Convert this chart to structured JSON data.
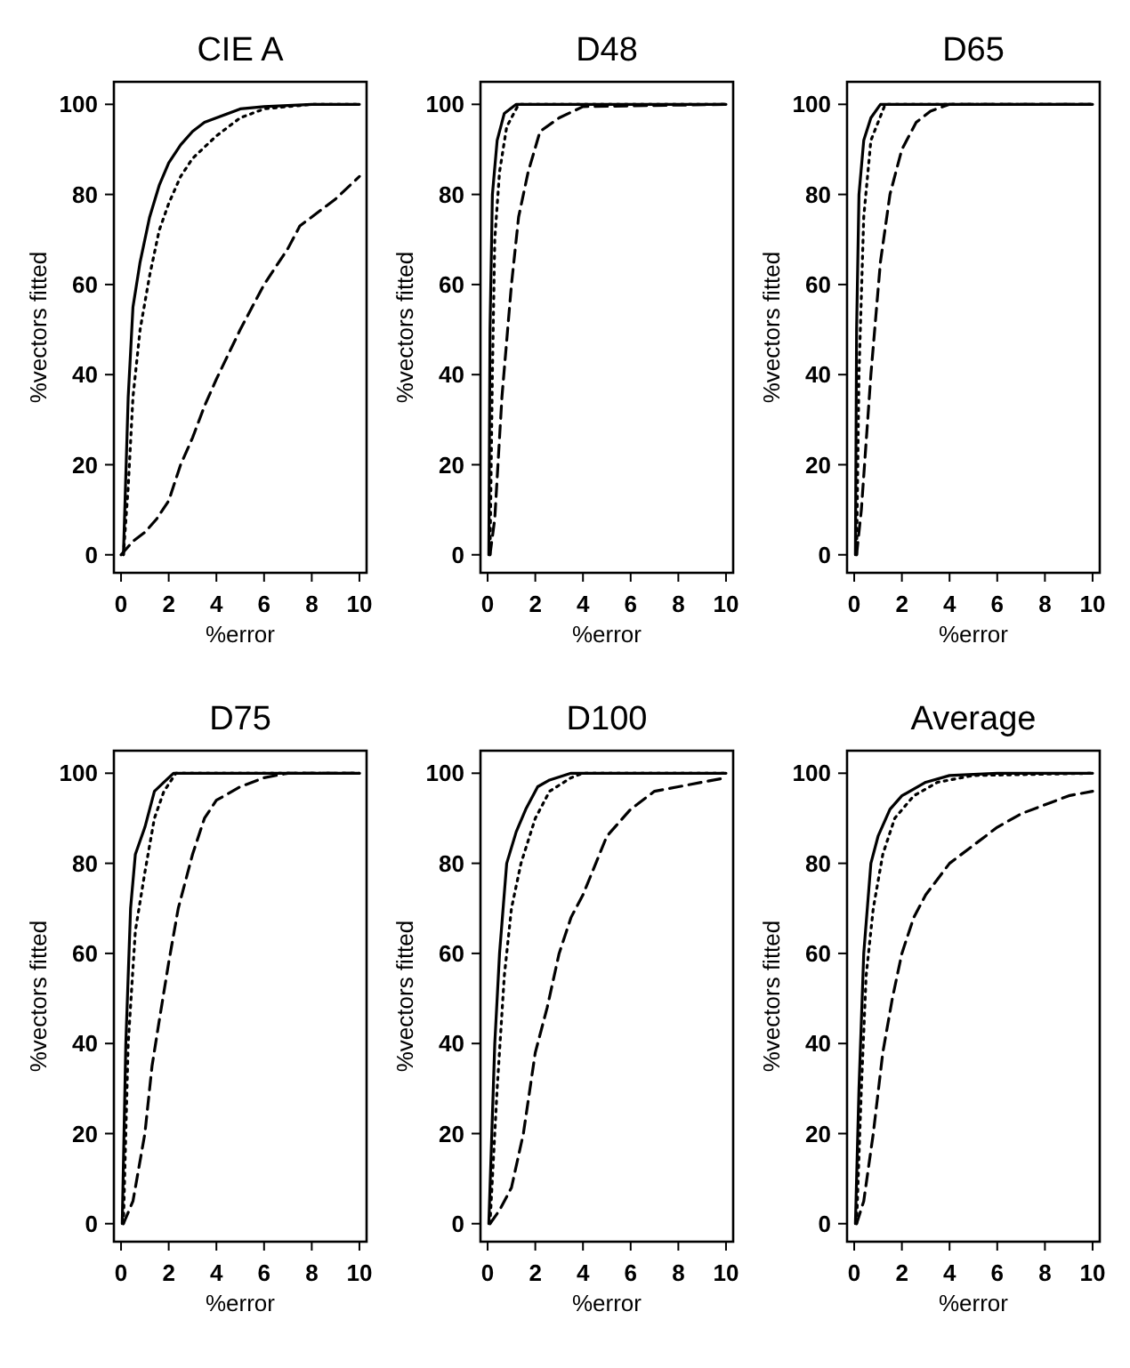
{
  "chart_data": [
    {
      "type": "line",
      "title": "CIE A",
      "xlabel": "%error",
      "ylabel": "%vectors fitted",
      "xlim": [
        -0.3,
        10.3
      ],
      "ylim": [
        -4,
        105
      ],
      "xticks": [
        0,
        2,
        4,
        6,
        8,
        10
      ],
      "yticks": [
        0,
        20,
        40,
        60,
        80,
        100
      ],
      "grid": false,
      "legend": false,
      "marker": "none",
      "series": [
        {
          "color": "#000000",
          "line_style": "solid",
          "x": [
            0.1,
            0.3,
            0.5,
            0.8,
            1.2,
            1.6,
            2,
            2.5,
            3,
            3.5,
            4,
            5,
            6,
            8,
            10
          ],
          "values": [
            0,
            35,
            55,
            65,
            75,
            82,
            87,
            91,
            94,
            96,
            97,
            99,
            99.5,
            100,
            100
          ]
        },
        {
          "color": "#000000",
          "line_style": "dotted",
          "x": [
            0.1,
            0.3,
            0.5,
            0.8,
            1.2,
            1.6,
            2,
            2.5,
            3,
            4,
            5,
            6,
            8,
            10
          ],
          "values": [
            0,
            15,
            35,
            50,
            62,
            72,
            78,
            84,
            88,
            93,
            97,
            99,
            100,
            100
          ]
        },
        {
          "color": "#000000",
          "line_style": "dashed",
          "x": [
            0,
            0.5,
            1,
            1.5,
            2,
            2.5,
            3,
            3.5,
            4,
            5,
            6,
            7,
            7.5,
            8,
            9,
            10
          ],
          "values": [
            0,
            3,
            5,
            8,
            12,
            20,
            26,
            33,
            39,
            50,
            60,
            68,
            73,
            75,
            79,
            84
          ]
        }
      ]
    },
    {
      "type": "line",
      "title": "D48",
      "xlabel": "%error",
      "ylabel": "%vectors fitted",
      "xlim": [
        -0.3,
        10.3
      ],
      "ylim": [
        -4,
        105
      ],
      "xticks": [
        0,
        2,
        4,
        6,
        8,
        10
      ],
      "yticks": [
        0,
        20,
        40,
        60,
        80,
        100
      ],
      "grid": false,
      "legend": false,
      "marker": "none",
      "series": [
        {
          "color": "#000000",
          "line_style": "solid",
          "x": [
            0.05,
            0.1,
            0.2,
            0.4,
            0.7,
            1.2,
            10
          ],
          "values": [
            0,
            50,
            80,
            92,
            98,
            100,
            100
          ]
        },
        {
          "color": "#000000",
          "line_style": "dotted",
          "x": [
            0.1,
            0.2,
            0.3,
            0.5,
            0.8,
            1.3,
            10
          ],
          "values": [
            0,
            40,
            70,
            85,
            95,
            100,
            100
          ]
        },
        {
          "color": "#000000",
          "line_style": "dashed",
          "x": [
            0.1,
            0.3,
            0.6,
            1,
            1.3,
            1.7,
            2.2,
            3,
            4,
            10
          ],
          "values": [
            0,
            8,
            35,
            60,
            75,
            85,
            94,
            97,
            99.5,
            100
          ]
        }
      ]
    },
    {
      "type": "line",
      "title": "D65",
      "xlabel": "%error",
      "ylabel": "%vectors fitted",
      "xlim": [
        -0.3,
        10.3
      ],
      "ylim": [
        -4,
        105
      ],
      "xticks": [
        0,
        2,
        4,
        6,
        8,
        10
      ],
      "yticks": [
        0,
        20,
        40,
        60,
        80,
        100
      ],
      "grid": false,
      "legend": false,
      "marker": "none",
      "series": [
        {
          "color": "#000000",
          "line_style": "solid",
          "x": [
            0.05,
            0.1,
            0.2,
            0.4,
            0.7,
            1.1,
            10
          ],
          "values": [
            0,
            50,
            80,
            92,
            97,
            100,
            100
          ]
        },
        {
          "color": "#000000",
          "line_style": "dotted",
          "x": [
            0.1,
            0.2,
            0.4,
            0.7,
            1.3,
            10
          ],
          "values": [
            0,
            40,
            75,
            92,
            100,
            100
          ]
        },
        {
          "color": "#000000",
          "line_style": "dashed",
          "x": [
            0.1,
            0.3,
            0.7,
            1.1,
            1.5,
            2,
            2.6,
            3.2,
            4,
            10
          ],
          "values": [
            0,
            10,
            40,
            65,
            80,
            90,
            96,
            98.5,
            100,
            100
          ]
        }
      ]
    },
    {
      "type": "line",
      "title": "D75",
      "xlabel": "%error",
      "ylabel": "%vectors fitted",
      "xlim": [
        -0.3,
        10.3
      ],
      "ylim": [
        -4,
        105
      ],
      "xticks": [
        0,
        2,
        4,
        6,
        8,
        10
      ],
      "yticks": [
        0,
        20,
        40,
        60,
        80,
        100
      ],
      "grid": false,
      "legend": false,
      "marker": "none",
      "series": [
        {
          "color": "#000000",
          "line_style": "solid",
          "x": [
            0.05,
            0.2,
            0.4,
            0.6,
            1,
            1.4,
            1.8,
            2.2,
            10
          ],
          "values": [
            0,
            40,
            70,
            82,
            88,
            96,
            98,
            100,
            100
          ]
        },
        {
          "color": "#000000",
          "line_style": "dotted",
          "x": [
            0.1,
            0.3,
            0.6,
            1,
            1.4,
            1.8,
            2.3,
            10
          ],
          "values": [
            0,
            40,
            65,
            78,
            90,
            96,
            100,
            100
          ]
        },
        {
          "color": "#000000",
          "line_style": "dashed",
          "x": [
            0.1,
            0.5,
            1,
            1.3,
            1.6,
            2,
            2.4,
            3,
            3.5,
            4,
            5,
            6,
            7,
            10
          ],
          "values": [
            0,
            5,
            20,
            35,
            45,
            58,
            70,
            82,
            90,
            94,
            97,
            99,
            100,
            100
          ]
        }
      ]
    },
    {
      "type": "line",
      "title": "D100",
      "xlabel": "%error",
      "ylabel": "%vectors fitted",
      "xlim": [
        -0.3,
        10.3
      ],
      "ylim": [
        -4,
        105
      ],
      "xticks": [
        0,
        2,
        4,
        6,
        8,
        10
      ],
      "yticks": [
        0,
        20,
        40,
        60,
        80,
        100
      ],
      "grid": false,
      "legend": false,
      "marker": "none",
      "series": [
        {
          "color": "#000000",
          "line_style": "solid",
          "x": [
            0.05,
            0.3,
            0.5,
            0.8,
            1.2,
            1.6,
            2.1,
            2.6,
            3.5,
            10
          ],
          "values": [
            0,
            40,
            60,
            80,
            87,
            92,
            97,
            98.5,
            100,
            100
          ]
        },
        {
          "color": "#000000",
          "line_style": "dotted",
          "x": [
            0.1,
            0.4,
            0.7,
            1,
            1.4,
            2,
            2.6,
            3.5,
            4,
            10
          ],
          "values": [
            0,
            30,
            55,
            70,
            80,
            90,
            96,
            99,
            100,
            100
          ]
        },
        {
          "color": "#000000",
          "line_style": "dashed",
          "x": [
            0.1,
            0.5,
            1,
            1.5,
            2,
            2.5,
            3,
            3.5,
            4,
            5,
            6,
            7,
            8,
            9,
            10
          ],
          "values": [
            0,
            3,
            8,
            20,
            38,
            48,
            60,
            68,
            73,
            86,
            92,
            96,
            97,
            98,
            99
          ]
        }
      ]
    },
    {
      "type": "line",
      "title": "Average",
      "xlabel": "%error",
      "ylabel": "%vectors fitted",
      "xlim": [
        -0.3,
        10.3
      ],
      "ylim": [
        -4,
        105
      ],
      "xticks": [
        0,
        2,
        4,
        6,
        8,
        10
      ],
      "yticks": [
        0,
        20,
        40,
        60,
        80,
        100
      ],
      "grid": false,
      "legend": false,
      "marker": "none",
      "series": [
        {
          "color": "#000000",
          "line_style": "solid",
          "x": [
            0.05,
            0.2,
            0.4,
            0.7,
            1,
            1.5,
            2,
            3,
            4,
            6,
            10
          ],
          "values": [
            0,
            30,
            60,
            80,
            86,
            92,
            95,
            98,
            99.5,
            100,
            100
          ]
        },
        {
          "color": "#000000",
          "line_style": "dotted",
          "x": [
            0.1,
            0.3,
            0.5,
            0.8,
            1.2,
            1.7,
            2.5,
            3.5,
            5,
            10
          ],
          "values": [
            0,
            30,
            55,
            70,
            82,
            90,
            95,
            98,
            99.5,
            100
          ]
        },
        {
          "color": "#000000",
          "line_style": "dashed",
          "x": [
            0.1,
            0.4,
            0.8,
            1.2,
            1.6,
            2,
            2.5,
            3,
            4,
            5,
            6,
            7,
            8,
            9,
            10
          ],
          "values": [
            0,
            5,
            20,
            38,
            50,
            60,
            68,
            73,
            80,
            84,
            88,
            91,
            93,
            95,
            96
          ]
        }
      ]
    }
  ]
}
